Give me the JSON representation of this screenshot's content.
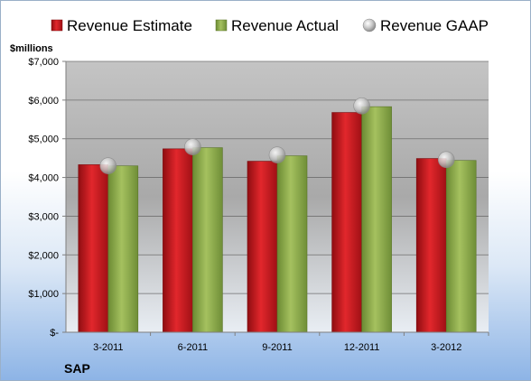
{
  "chart_data": {
    "type": "bar",
    "title": "",
    "ylabel": "$millions",
    "company": "SAP",
    "categories": [
      "3-2011",
      "6-2011",
      "9-2011",
      "12-2011",
      "3-2012"
    ],
    "series": [
      {
        "name": "Revenue Estimate",
        "kind": "bar",
        "color": "#c8161d",
        "values": [
          4330,
          4740,
          4420,
          5680,
          4490
        ]
      },
      {
        "name": "Revenue Actual",
        "kind": "bar",
        "color": "#8eaa4e",
        "values": [
          4300,
          4770,
          4560,
          5830,
          4440
        ]
      },
      {
        "name": "Revenue GAAP",
        "kind": "point",
        "color": "#c0c0c0",
        "values": [
          4300,
          4790,
          4580,
          5850,
          4460
        ]
      }
    ],
    "ylim": [
      0,
      7000
    ],
    "yticks": [
      0,
      1000,
      2000,
      3000,
      4000,
      5000,
      6000,
      7000
    ],
    "ytick_labels": [
      "$-",
      "$1,000",
      "$2,000",
      "$3,000",
      "$4,000",
      "$5,000",
      "$6,000",
      "$7,000"
    ],
    "grid": true,
    "legend_position": "top"
  }
}
